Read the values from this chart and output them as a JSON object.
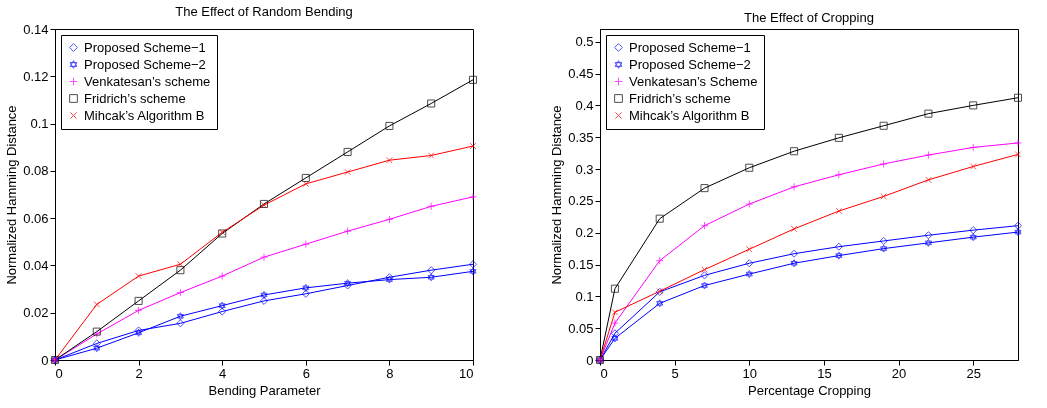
{
  "chart_data": [
    {
      "type": "line",
      "title": "The Effect of Random Bending",
      "xlabel": "Bending Parameter",
      "ylabel": "Normalized Hamming Distance",
      "x": [
        0,
        1,
        2,
        3,
        4,
        5,
        6,
        7,
        8,
        9,
        10
      ],
      "xlim": [
        0,
        10
      ],
      "xticks": [
        0,
        2,
        4,
        6,
        8,
        10
      ],
      "ylim": [
        0,
        0.14
      ],
      "yticks": [
        0,
        0.02,
        0.04,
        0.06,
        0.08,
        0.1,
        0.12,
        0.14
      ],
      "grid": false,
      "legend": "top left",
      "series": [
        {
          "name": "Proposed Scheme−1",
          "color": "#0000ff",
          "marker": "diamond",
          "values": [
            0,
            0.007,
            0.0125,
            0.0155,
            0.0205,
            0.025,
            0.028,
            0.0315,
            0.035,
            0.038,
            0.0405
          ]
        },
        {
          "name": "Proposed Scheme−2",
          "color": "#0000ff",
          "marker": "star",
          "values": [
            0,
            0.005,
            0.0115,
            0.0185,
            0.023,
            0.0275,
            0.0305,
            0.0325,
            0.034,
            0.035,
            0.0375
          ]
        },
        {
          "name": "Venkatesan’s scheme",
          "color": "#ff00ff",
          "marker": "cross",
          "values": [
            0,
            0.011,
            0.021,
            0.0285,
            0.0355,
            0.0435,
            0.049,
            0.0545,
            0.0595,
            0.065,
            0.069
          ]
        },
        {
          "name": "Fridrich’s scheme",
          "color": "#000000",
          "marker": "square",
          "values": [
            0,
            0.012,
            0.025,
            0.038,
            0.0535,
            0.066,
            0.077,
            0.088,
            0.099,
            0.1085,
            0.1185
          ]
        },
        {
          "name": "Mihcak’s Algorithm B",
          "color": "#ff0000",
          "marker": "x",
          "values": [
            0,
            0.0235,
            0.0355,
            0.0405,
            0.054,
            0.0655,
            0.0745,
            0.0795,
            0.0845,
            0.0865,
            0.0905
          ]
        }
      ]
    },
    {
      "type": "line",
      "title": "The Effect of Cropping",
      "xlabel": "Percentage Cropping",
      "ylabel": "Normalized Hamming Distance",
      "x": [
        0,
        1,
        4,
        7,
        10,
        13,
        16,
        19,
        22,
        25,
        28
      ],
      "xlim": [
        0,
        28
      ],
      "xticks": [
        0,
        5,
        10,
        15,
        20,
        25
      ],
      "ylim": [
        0,
        0.52
      ],
      "yticks": [
        0,
        0.05,
        0.1,
        0.15,
        0.2,
        0.25,
        0.3,
        0.35,
        0.4,
        0.45,
        0.5
      ],
      "grid": false,
      "legend": "top left",
      "series": [
        {
          "name": "Proposed Scheme−1",
          "color": "#0000ff",
          "marker": "diamond",
          "values": [
            0,
            0.042,
            0.107,
            0.133,
            0.152,
            0.167,
            0.178,
            0.187,
            0.196,
            0.204,
            0.211
          ]
        },
        {
          "name": "Proposed Scheme−2",
          "color": "#0000ff",
          "marker": "star",
          "values": [
            0,
            0.034,
            0.089,
            0.117,
            0.135,
            0.152,
            0.164,
            0.175,
            0.184,
            0.193,
            0.201
          ]
        },
        {
          "name": "Venkatesan’s Scheme",
          "color": "#ff00ff",
          "marker": "cross",
          "values": [
            0,
            0.058,
            0.156,
            0.211,
            0.245,
            0.272,
            0.291,
            0.308,
            0.322,
            0.334,
            0.341
          ]
        },
        {
          "name": "Fridrich’s scheme",
          "color": "#000000",
          "marker": "square",
          "values": [
            0,
            0.112,
            0.222,
            0.27,
            0.302,
            0.328,
            0.349,
            0.368,
            0.387,
            0.4,
            0.412
          ]
        },
        {
          "name": "Mihcak’s Algorithm B",
          "color": "#ff0000",
          "marker": "x",
          "values": [
            0,
            0.075,
            0.108,
            0.142,
            0.174,
            0.206,
            0.234,
            0.257,
            0.283,
            0.304,
            0.323
          ]
        }
      ]
    }
  ]
}
